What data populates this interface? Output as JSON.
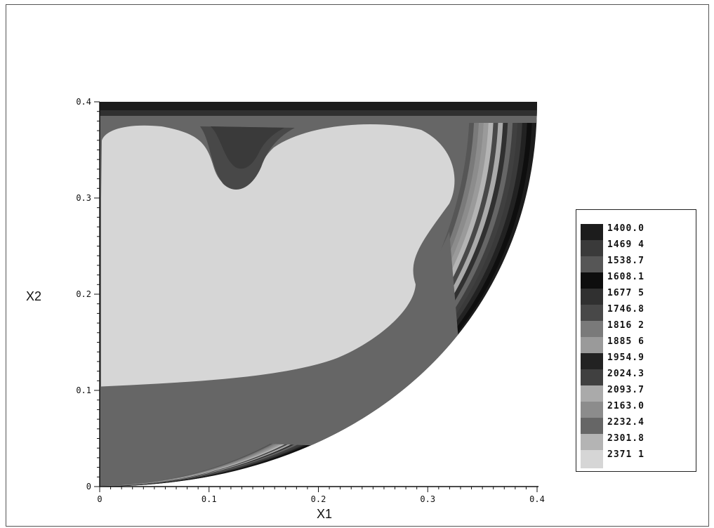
{
  "chart_data": {
    "type": "heatmap",
    "title": "",
    "xlabel": "X1",
    "ylabel": "X2",
    "xlim": [
      0,
      0.4
    ],
    "ylim": [
      0,
      0.4
    ],
    "x_ticks": [
      {
        "value": 0,
        "label": "0"
      },
      {
        "value": 0.1,
        "label": "0.1"
      },
      {
        "value": 0.2,
        "label": "0.2"
      },
      {
        "value": 0.3,
        "label": "0.3"
      },
      {
        "value": 0.4,
        "label": "0.4"
      }
    ],
    "y_ticks": [
      {
        "value": 0,
        "label": "0"
      },
      {
        "value": 0.1,
        "label": "0.1"
      },
      {
        "value": 0.2,
        "label": "0.2"
      },
      {
        "value": 0.3,
        "label": "0.3"
      },
      {
        "value": 0.4,
        "label": "0.4"
      }
    ],
    "domain_boundary": "quarter ellipse from (0.4, 0.4) to (0, 0)",
    "legend_placement": "right",
    "levels": [
      {
        "label": "1400.0",
        "color": "#1c1c1c"
      },
      {
        "label": "1469 4",
        "color": "#3a3a3a"
      },
      {
        "label": "1538.7",
        "color": "#565656"
      },
      {
        "label": "1608.1",
        "color": "#0e0e0e"
      },
      {
        "label": "1677 5",
        "color": "#303030"
      },
      {
        "label": "1746.8",
        "color": "#484848"
      },
      {
        "label": "1816 2",
        "color": "#7a7a7a"
      },
      {
        "label": "1885 6",
        "color": "#9a9a9a"
      },
      {
        "label": "1954.9",
        "color": "#222222"
      },
      {
        "label": "2024.3",
        "color": "#404040"
      },
      {
        "label": "2093.7",
        "color": "#aaaaaa"
      },
      {
        "label": "2163.0",
        "color": "#8c8c8c"
      },
      {
        "label": "2232.4",
        "color": "#666666"
      },
      {
        "label": "2301.8",
        "color": "#b4b4b4"
      },
      {
        "label": "2371 1",
        "color": "#d6d6d6"
      }
    ]
  }
}
